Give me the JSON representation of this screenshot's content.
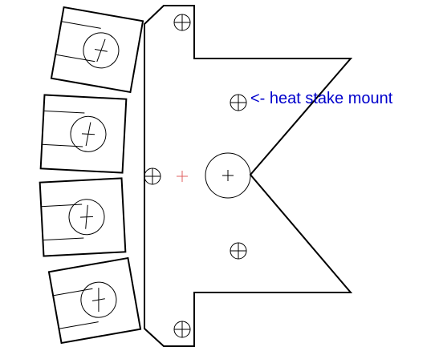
{
  "annotation": {
    "text": "<- heat stake mount",
    "color": "#0000cc"
  },
  "colors": {
    "outline": "#000000",
    "center_mark": "#e06060",
    "background": "#ffffff"
  }
}
